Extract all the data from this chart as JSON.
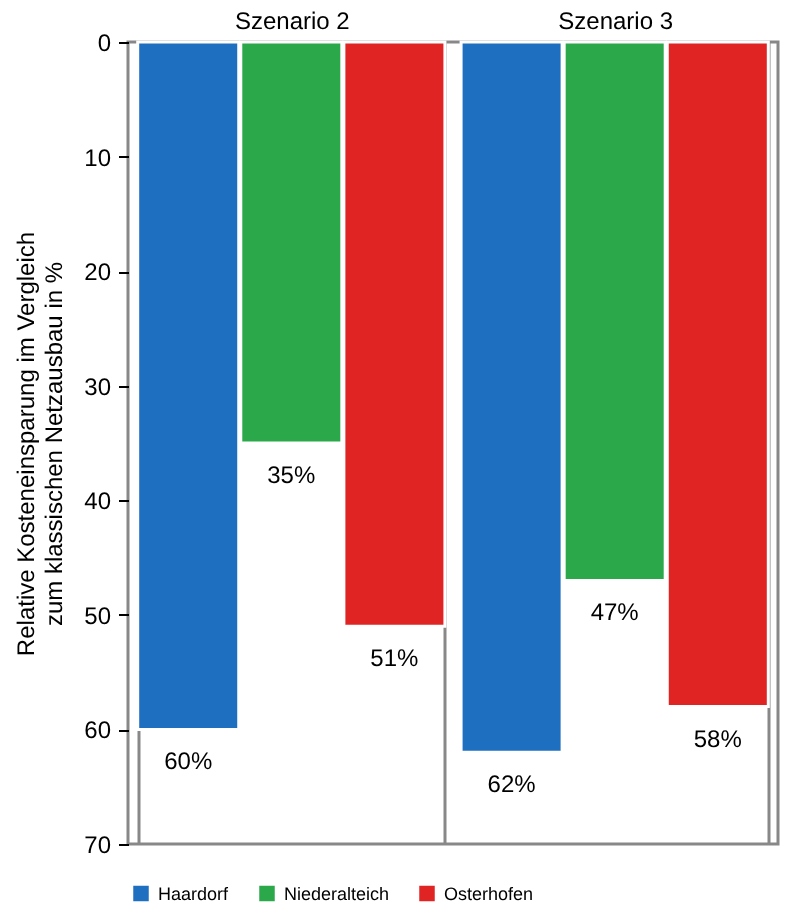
{
  "chart_data": {
    "type": "bar",
    "ylabel": "Relative Kosteneinsparung im Vergleich zum klassischen Netzausbau in %",
    "categories": [
      "Szenario 2",
      "Szenario 3"
    ],
    "series": [
      {
        "name": "Haardorf",
        "color": "#1f6fc0",
        "values": [
          60,
          62
        ],
        "value_labels": [
          "60%",
          "62%"
        ]
      },
      {
        "name": "Niederalteich",
        "color": "#2aa84a",
        "values": [
          35,
          47
        ],
        "value_labels": [
          "35%",
          "47%"
        ]
      },
      {
        "name": "Osterhofen",
        "color": "#e02424",
        "values": [
          51,
          58
        ],
        "value_labels": [
          "51%",
          "58%"
        ]
      }
    ],
    "ylim": [
      70,
      0
    ],
    "yticks": [
      0,
      10,
      20,
      30,
      40,
      50,
      60,
      70
    ],
    "grid": "x",
    "legend": "bottom"
  }
}
